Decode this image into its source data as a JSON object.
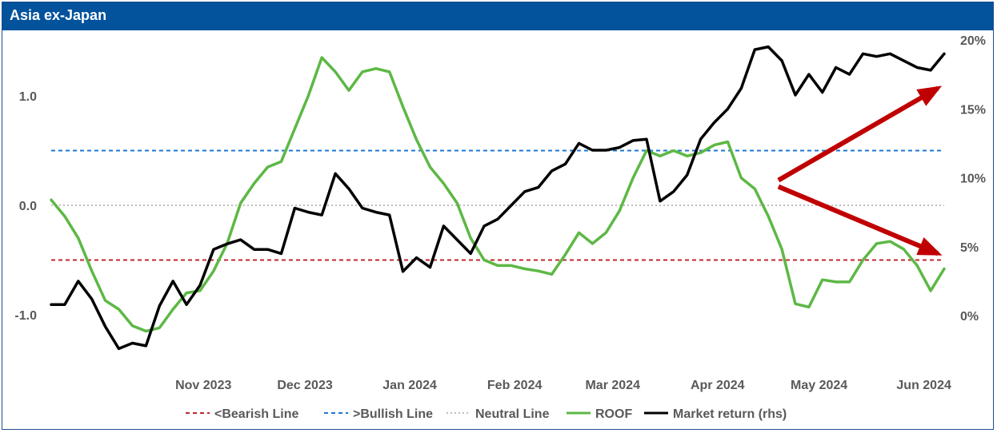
{
  "header": {
    "title": "Asia ex-Japan"
  },
  "colors": {
    "header_bg": "#02529c",
    "bearish": "#c0282d",
    "bullish": "#1f77d0",
    "neutral": "#bfbfbf",
    "roof": "#5db845",
    "market": "#000000",
    "arrow": "#c00000",
    "tick_text": "#595959"
  },
  "chart_data": {
    "type": "line",
    "title": "Asia ex-Japan",
    "x_ticks": [
      "Nov 2023",
      "Dec 2023",
      "Jan 2024",
      "Feb 2024",
      "Mar 2024",
      "Apr 2024",
      "May 2024",
      "Jun 2024"
    ],
    "y_left": {
      "ticks": [
        "1.0",
        "0.0",
        "-1.0"
      ],
      "range": [
        -1.5,
        1.5
      ]
    },
    "y_right": {
      "ticks": [
        "20%",
        "15%",
        "10%",
        "5%",
        "0%"
      ],
      "range": [
        -2,
        21
      ]
    },
    "reference_lines": [
      {
        "name": "<Bearish Line",
        "value": -0.5,
        "style": "dashed"
      },
      {
        "name": ">Bullish Line",
        "value": 0.5,
        "style": "dashed"
      },
      {
        "name": "Neutral Line",
        "value": 0.0,
        "style": "dotted"
      }
    ],
    "legend": [
      "<Bearish Line",
      ">Bullish Line",
      "Neutral Line",
      "ROOF",
      "Market return (rhs)"
    ],
    "legend_position": "bottom",
    "series": [
      {
        "name": "ROOF",
        "axis": "left",
        "x": [
          "2023-10-01",
          "2023-10-05",
          "2023-10-09",
          "2023-10-13",
          "2023-10-17",
          "2023-10-21",
          "2023-10-25",
          "2023-10-29",
          "2023-11-02",
          "2023-11-06",
          "2023-11-10",
          "2023-11-14",
          "2023-11-18",
          "2023-11-22",
          "2023-11-26",
          "2023-11-30",
          "2023-12-04",
          "2023-12-08",
          "2023-12-12",
          "2023-12-16",
          "2023-12-20",
          "2023-12-24",
          "2023-12-28",
          "2024-01-01",
          "2024-01-05",
          "2024-01-09",
          "2024-01-13",
          "2024-01-17",
          "2024-01-21",
          "2024-01-25",
          "2024-01-29",
          "2024-02-02",
          "2024-02-06",
          "2024-02-10",
          "2024-02-14",
          "2024-02-18",
          "2024-02-22",
          "2024-02-26",
          "2024-03-01",
          "2024-03-05",
          "2024-03-09",
          "2024-03-13",
          "2024-03-17",
          "2024-03-21",
          "2024-03-25",
          "2024-03-29",
          "2024-04-02",
          "2024-04-06",
          "2024-04-10",
          "2024-04-14",
          "2024-04-18",
          "2024-04-22",
          "2024-04-26",
          "2024-04-30",
          "2024-05-04",
          "2024-05-08",
          "2024-05-12",
          "2024-05-16",
          "2024-05-20",
          "2024-05-24",
          "2024-05-28",
          "2024-06-01",
          "2024-06-05",
          "2024-06-09",
          "2024-06-13",
          "2024-06-17",
          "2024-06-21"
        ],
        "values": [
          0.05,
          -0.1,
          -0.3,
          -0.6,
          -0.87,
          -0.95,
          -1.1,
          -1.15,
          -1.12,
          -0.95,
          -0.8,
          -0.78,
          -0.6,
          -0.35,
          0.02,
          0.2,
          0.35,
          0.4,
          0.7,
          1.0,
          1.35,
          1.22,
          1.05,
          1.22,
          1.25,
          1.22,
          0.9,
          0.6,
          0.35,
          0.2,
          0.02,
          -0.3,
          -0.5,
          -0.55,
          -0.55,
          -0.58,
          -0.6,
          -0.63,
          -0.45,
          -0.25,
          -0.35,
          -0.25,
          -0.05,
          0.25,
          0.5,
          0.45,
          0.5,
          0.45,
          0.48,
          0.55,
          0.58,
          0.25,
          0.15,
          -0.1,
          -0.4,
          -0.9,
          -0.93,
          -0.68,
          -0.7,
          -0.7,
          -0.5,
          -0.35,
          -0.33,
          -0.4,
          -0.55,
          -0.78,
          -0.58
        ]
      },
      {
        "name": "Market return (rhs)",
        "axis": "right",
        "x": [
          "2023-10-01",
          "2023-10-05",
          "2023-10-09",
          "2023-10-13",
          "2023-10-17",
          "2023-10-21",
          "2023-10-25",
          "2023-10-29",
          "2023-11-02",
          "2023-11-06",
          "2023-11-10",
          "2023-11-14",
          "2023-11-18",
          "2023-11-22",
          "2023-11-26",
          "2023-11-30",
          "2023-12-04",
          "2023-12-08",
          "2023-12-12",
          "2023-12-16",
          "2023-12-20",
          "2023-12-24",
          "2023-12-28",
          "2024-01-01",
          "2024-01-05",
          "2024-01-09",
          "2024-01-13",
          "2024-01-17",
          "2024-01-21",
          "2024-01-25",
          "2024-01-29",
          "2024-02-02",
          "2024-02-06",
          "2024-02-10",
          "2024-02-14",
          "2024-02-18",
          "2024-02-22",
          "2024-02-26",
          "2024-03-01",
          "2024-03-05",
          "2024-03-09",
          "2024-03-13",
          "2024-03-17",
          "2024-03-21",
          "2024-03-25",
          "2024-03-29",
          "2024-04-02",
          "2024-04-06",
          "2024-04-10",
          "2024-04-14",
          "2024-04-18",
          "2024-04-22",
          "2024-04-26",
          "2024-04-30",
          "2024-05-04",
          "2024-05-08",
          "2024-05-12",
          "2024-05-16",
          "2024-05-20",
          "2024-05-24",
          "2024-05-28",
          "2024-06-01",
          "2024-06-05",
          "2024-06-09",
          "2024-06-13",
          "2024-06-17",
          "2024-06-21"
        ],
        "values": [
          0.8,
          0.8,
          2.5,
          1.2,
          -0.8,
          -2.4,
          -2.0,
          -2.2,
          0.7,
          2.5,
          0.8,
          2.2,
          4.8,
          5.2,
          5.5,
          4.8,
          4.8,
          4.5,
          7.8,
          7.5,
          7.3,
          10.3,
          9.2,
          7.8,
          7.5,
          7.3,
          3.2,
          4.2,
          3.5,
          6.5,
          5.5,
          4.5,
          6.5,
          7.0,
          8.0,
          9.0,
          9.3,
          10.5,
          11.0,
          12.5,
          12.0,
          12.0,
          12.2,
          12.7,
          12.8,
          8.3,
          9.0,
          10.2,
          12.8,
          14.0,
          15.0,
          16.5,
          19.3,
          19.5,
          18.5,
          16.0,
          17.5,
          16.2,
          18.0,
          17.5,
          19.0,
          18.8,
          19.0,
          18.5,
          18.0,
          17.8,
          19.0
        ]
      }
    ],
    "annotations": [
      {
        "type": "arrow",
        "from": "2024-05-03",
        "to_axis": "right",
        "to_value": 16.5
      },
      {
        "type": "arrow",
        "from": "2024-05-03",
        "to_axis": "right",
        "to_value": 4.5
      }
    ]
  }
}
